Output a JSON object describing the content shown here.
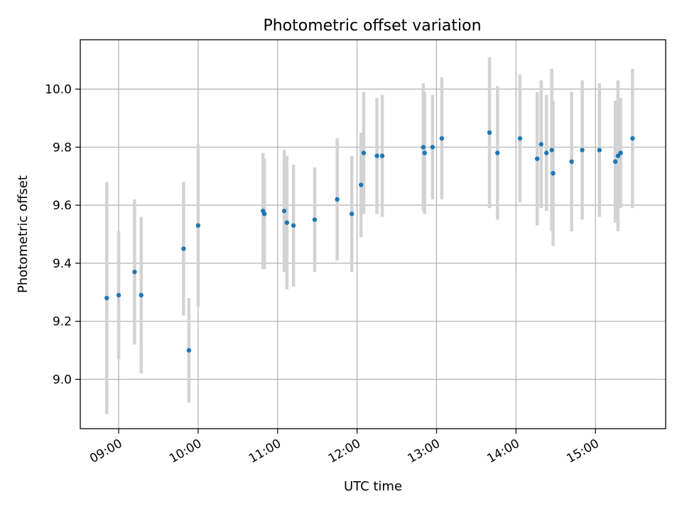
{
  "chart_data": {
    "type": "scatter",
    "title": "Photometric offset variation",
    "xlabel": "UTC time",
    "ylabel": "Photometric offset",
    "x_ticks": [
      "09:00",
      "10:00",
      "11:00",
      "12:00",
      "13:00",
      "14:00",
      "15:00"
    ],
    "y_ticks": [
      "9.0",
      "9.2",
      "9.4",
      "9.6",
      "9.8",
      "10.0"
    ],
    "xlim": [
      "08:31",
      "15:53"
    ],
    "ylim": [
      8.83,
      10.17
    ],
    "grid": true,
    "colors": {
      "point": "#1f77b4",
      "errorbar": "#d3d3d3",
      "grid": "#b0b0b0"
    },
    "points": [
      {
        "t": "08:51",
        "y": 9.28,
        "err": 0.4
      },
      {
        "t": "09:00",
        "y": 9.29,
        "err": 0.22
      },
      {
        "t": "09:12",
        "y": 9.37,
        "err": 0.25
      },
      {
        "t": "09:17",
        "y": 9.29,
        "err": 0.27
      },
      {
        "t": "09:49",
        "y": 9.45,
        "err": 0.23
      },
      {
        "t": "09:53",
        "y": 9.1,
        "err": 0.18
      },
      {
        "t": "10:00",
        "y": 9.53,
        "err": 0.28
      },
      {
        "t": "10:49",
        "y": 9.58,
        "err": 0.2
      },
      {
        "t": "10:50",
        "y": 9.57,
        "err": 0.19
      },
      {
        "t": "11:05",
        "y": 9.58,
        "err": 0.21
      },
      {
        "t": "11:07",
        "y": 9.54,
        "err": 0.23
      },
      {
        "t": "11:12",
        "y": 9.53,
        "err": 0.21
      },
      {
        "t": "11:28",
        "y": 9.55,
        "err": 0.18
      },
      {
        "t": "11:45",
        "y": 9.62,
        "err": 0.21
      },
      {
        "t": "11:56",
        "y": 9.57,
        "err": 0.2
      },
      {
        "t": "12:03",
        "y": 9.67,
        "err": 0.18
      },
      {
        "t": "12:05",
        "y": 9.78,
        "err": 0.21
      },
      {
        "t": "12:15",
        "y": 9.77,
        "err": 0.2
      },
      {
        "t": "12:19",
        "y": 9.77,
        "err": 0.21
      },
      {
        "t": "12:50",
        "y": 9.8,
        "err": 0.22
      },
      {
        "t": "12:51",
        "y": 9.78,
        "err": 0.21
      },
      {
        "t": "12:57",
        "y": 9.8,
        "err": 0.18
      },
      {
        "t": "13:04",
        "y": 9.83,
        "err": 0.21
      },
      {
        "t": "13:40",
        "y": 9.85,
        "err": 0.26
      },
      {
        "t": "13:46",
        "y": 9.78,
        "err": 0.23
      },
      {
        "t": "14:03",
        "y": 9.83,
        "err": 0.22
      },
      {
        "t": "14:16",
        "y": 9.76,
        "err": 0.23
      },
      {
        "t": "14:19",
        "y": 9.81,
        "err": 0.22
      },
      {
        "t": "14:23",
        "y": 9.78,
        "err": 0.2
      },
      {
        "t": "14:27",
        "y": 9.79,
        "err": 0.28
      },
      {
        "t": "14:28",
        "y": 9.71,
        "err": 0.25
      },
      {
        "t": "14:42",
        "y": 9.75,
        "err": 0.24
      },
      {
        "t": "14:50",
        "y": 9.79,
        "err": 0.24
      },
      {
        "t": "15:03",
        "y": 9.79,
        "err": 0.23
      },
      {
        "t": "15:15",
        "y": 9.75,
        "err": 0.21
      },
      {
        "t": "15:17",
        "y": 9.77,
        "err": 0.26
      },
      {
        "t": "15:19",
        "y": 9.78,
        "err": 0.19
      },
      {
        "t": "15:28",
        "y": 9.83,
        "err": 0.24
      }
    ]
  }
}
